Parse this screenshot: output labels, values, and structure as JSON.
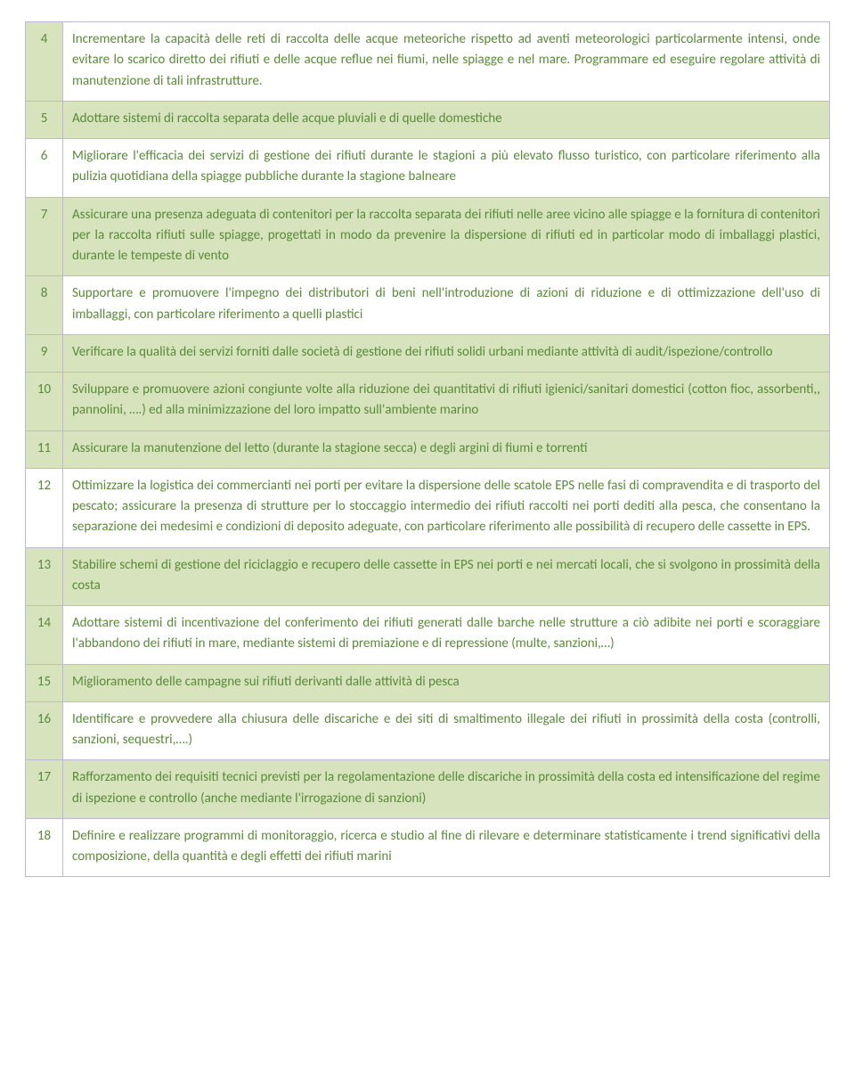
{
  "colors": {
    "text": "#5a8a3a",
    "border": "#c2b6d6",
    "highlight": "#d6e3bc",
    "plain": "#ffffff"
  },
  "rows": [
    {
      "n": "4",
      "style": "hl-left",
      "text": "Incrementare la capacità delle reti di raccolta delle acque meteoriche rispetto ad aventi meteorologici particolarmente intensi, onde evitare lo scarico diretto dei rifiuti e delle acque reflue nei fiumi, nelle spiagge e nel mare. Programmare ed eseguire regolare attività di manutenzione di tali infrastrutture."
    },
    {
      "n": "5",
      "style": "hl",
      "text": "Adottare sistemi di raccolta separata delle acque pluviali e di quelle domestiche"
    },
    {
      "n": "6",
      "style": "plain",
      "text": "Migliorare l'efficacia dei servizi di gestione dei rifiuti durante le stagioni a più elevato flusso turistico, con particolare riferimento alla pulizia quotidiana della spiagge pubbliche durante la stagione balneare"
    },
    {
      "n": "7",
      "style": "hl",
      "text": "Assicurare una presenza adeguata di contenitori per la raccolta separata dei rifiuti nelle aree vicino alle spiagge e la fornitura di contenitori per la raccolta rifiuti sulle spiagge, progettati in modo da prevenire la dispersione di rifiuti ed in particolar modo di imballaggi plastici, durante le tempeste di vento"
    },
    {
      "n": "8",
      "style": "hl-left",
      "text": "Supportare e promuovere l'impegno dei distributori di beni nell'introduzione di azioni di riduzione e di ottimizzazione dell'uso di imballaggi, con particolare riferimento a quelli plastici"
    },
    {
      "n": "9",
      "style": "hl",
      "text": "Verificare la qualità dei servizi forniti dalle società di gestione dei rifiuti solidi urbani mediante attività di audit/ispezione/controllo"
    },
    {
      "n": "10",
      "style": "hl",
      "text": "Sviluppare e promuovere azioni congiunte volte alla riduzione dei quantitativi di rifiuti igienici/sanitari domestici (cotton fioc, assorbenti,, pannolini, ….) ed alla minimizzazione del loro impatto sull'ambiente marino"
    },
    {
      "n": "11",
      "style": "hl",
      "text": "Assicurare la manutenzione del letto (durante la stagione secca) e degli argini di fiumi e torrenti"
    },
    {
      "n": "12",
      "style": "plain",
      "text": "Ottimizzare la logistica dei commercianti nei porti per evitare la dispersione delle scatole EPS nelle fasi di compravendita e di trasporto del pescato; assicurare la presenza di strutture per lo stoccaggio intermedio dei rifiuti raccolti nei porti dediti alla pesca, che consentano la separazione dei medesimi e condizioni di deposito adeguate, con particolare riferimento alle possibilità di recupero delle cassette in EPS."
    },
    {
      "n": "13",
      "style": "hl",
      "text": "Stabilire schemi di gestione del riciclaggio e recupero delle cassette in EPS nei porti e nei mercati locali, che si svolgono in prossimità della costa"
    },
    {
      "n": "14",
      "style": "hl-left",
      "text": "Adottare sistemi di incentivazione del conferimento dei rifiuti generati dalle barche nelle strutture a ciò adibite nei porti e scoraggiare l'abbandono dei rifiuti in mare, mediante sistemi di premiazione e di repressione (multe, sanzioni,…)"
    },
    {
      "n": "15",
      "style": "hl",
      "text": "Miglioramento delle campagne sui rifiuti derivanti dalle attività di pesca"
    },
    {
      "n": "16",
      "style": "hl-left",
      "text": "Identificare e provvedere alla chiusura delle discariche e dei siti di smaltimento illegale dei rifiuti in prossimità della costa (controlli, sanzioni, sequestri,….)"
    },
    {
      "n": "17",
      "style": "hl",
      "text": "Rafforzamento dei requisiti tecnici previsti per la regolamentazione delle discariche in prossimità della costa ed intensificazione del regime di ispezione e controllo (anche mediante l'irrogazione di sanzioni)"
    },
    {
      "n": "18",
      "style": "plain",
      "text": "Definire e realizzare programmi di monitoraggio, ricerca e studio al fine di rilevare e determinare statisticamente i trend significativi della composizione, della quantità e degli effetti dei rifiuti marini"
    }
  ]
}
